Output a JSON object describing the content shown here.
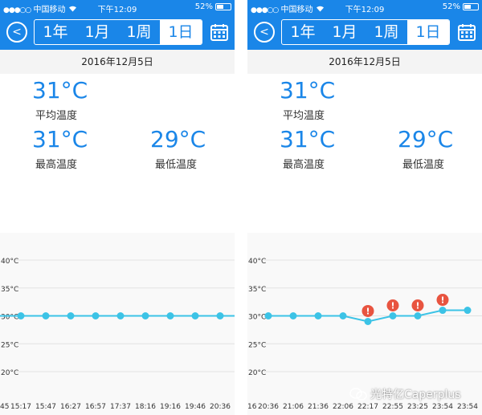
{
  "status_bar": {
    "signal_dots": "●●●○○",
    "carrier": "中国移动",
    "time": "下午12:09",
    "battery_percent": "52%",
    "battery_level": 0.52
  },
  "nav": {
    "back_icon": "back-arrow-icon",
    "segments": [
      "1年",
      "1月",
      "1周",
      "1日"
    ],
    "active_segment": "1日",
    "calendar_icon": "calendar-icon"
  },
  "date": "2016年12月5日",
  "stats": {
    "avg_value": "31°C",
    "avg_label": "平均温度",
    "max_value": "31°C",
    "max_label": "最高温度",
    "min_value": "29°C",
    "min_label": "最低温度"
  },
  "colors": {
    "accent": "#1a86e8",
    "line": "#3cc3e6",
    "alert": "#e85440"
  },
  "chart_data": [
    {
      "type": "line",
      "ylim": [
        20,
        40
      ],
      "yticks": [
        "40°C",
        "35°C",
        "30°C",
        "25°C",
        "20°C"
      ],
      "ytick_values": [
        40,
        35,
        30,
        25,
        20
      ],
      "x_first_partial": "45",
      "x": [
        "15:17",
        "15:47",
        "16:27",
        "16:57",
        "17:37",
        "18:16",
        "19:16",
        "19:46",
        "20:36"
      ],
      "values": [
        30,
        30,
        30,
        30,
        30,
        30,
        30,
        30,
        30
      ],
      "alerts": [
        false,
        false,
        false,
        false,
        false,
        false,
        false,
        false,
        false
      ],
      "trailing_value": 30
    },
    {
      "type": "line",
      "ylim": [
        20,
        40
      ],
      "yticks": [
        "40°C",
        "35°C",
        "30°C",
        "25°C",
        "20°C"
      ],
      "ytick_values": [
        40,
        35,
        30,
        25,
        20
      ],
      "x_first_partial": "16",
      "x": [
        "20:36",
        "21:06",
        "21:36",
        "22:06",
        "22:17",
        "22:55",
        "23:25",
        "23:54",
        "23:54"
      ],
      "values": [
        30,
        30,
        30,
        30,
        29,
        30,
        30,
        31,
        31
      ],
      "alerts": [
        false,
        false,
        false,
        false,
        true,
        true,
        true,
        true,
        false
      ],
      "alert_symbol": "!",
      "trailing_value": null
    }
  ],
  "watermark": {
    "text": "光特亿Caperplus",
    "icon": "wechat-icon"
  }
}
